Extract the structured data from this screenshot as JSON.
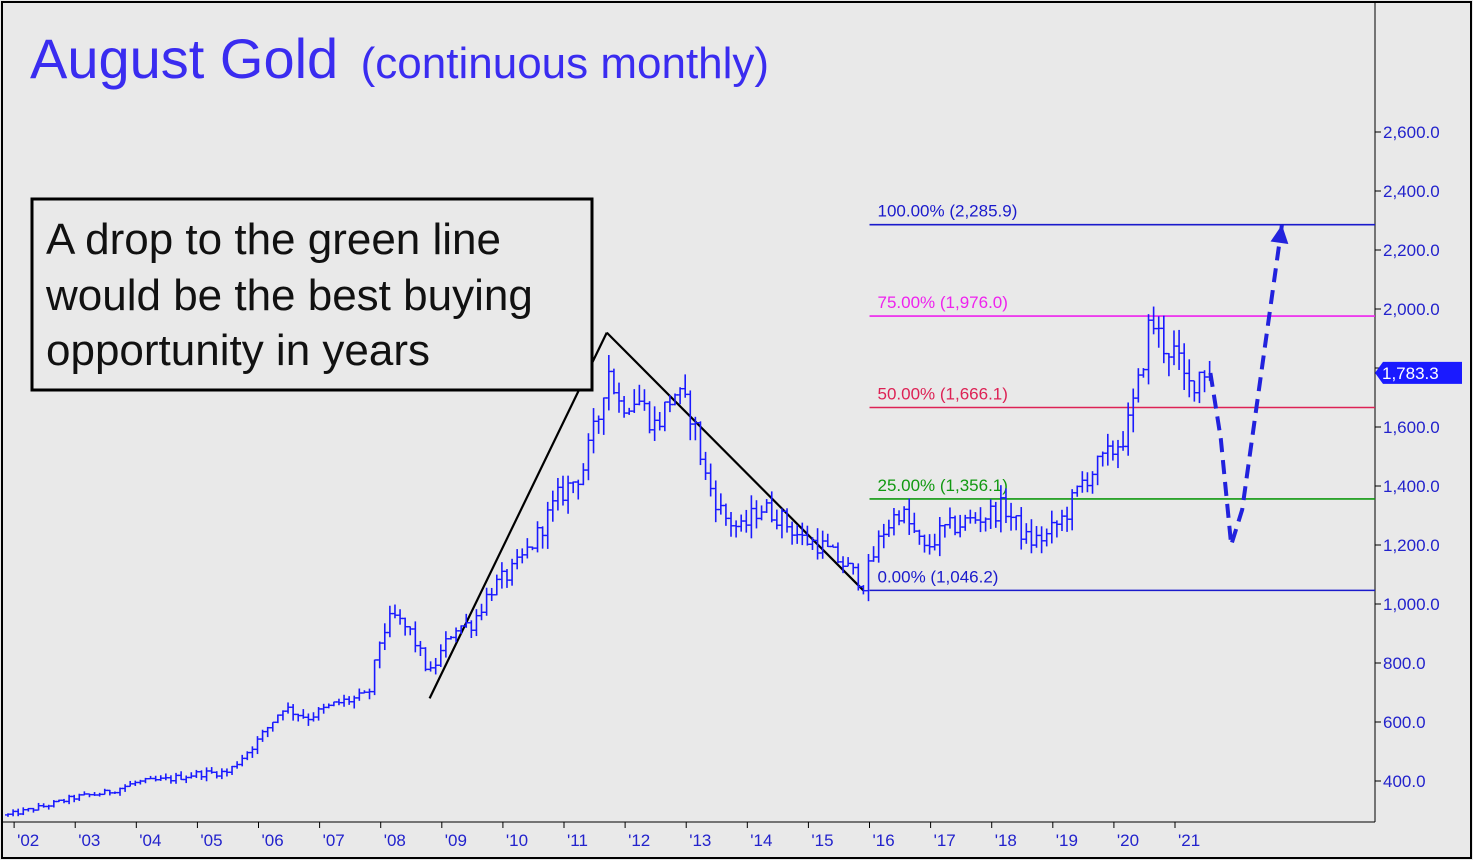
{
  "title": {
    "main": "August Gold",
    "sub": "(continuous monthly)"
  },
  "annotation": {
    "lines": [
      "A drop to the green line",
      "would be the best buying",
      "opportunity in years"
    ]
  },
  "last_price_tag": "1,783.3",
  "colors": {
    "background": "#e9e9e9",
    "bars": "#1a1aff",
    "title": "#3a2cf0",
    "fib_100": "#1a1acc",
    "fib_75": "#ee22ee",
    "fib_50": "#dd2255",
    "fib_25": "#119911",
    "fib_0": "#1a1acc",
    "projection": "#2222dd",
    "trend": "#000000"
  },
  "chart_data": {
    "type": "ohlc",
    "frequency": "monthly",
    "x_tick_labels": [
      "'02",
      "'03",
      "'04",
      "'05",
      "'06",
      "'07",
      "'08",
      "'09",
      "'10",
      "'11",
      "'12",
      "'13",
      "'14",
      "'15",
      "'16",
      "'17",
      "'18",
      "'19",
      "'20",
      "'21"
    ],
    "y_tick_labels": [
      "400.0",
      "600.0",
      "800.0",
      "1,000.0",
      "1,200.0",
      "1,400.0",
      "1,600.0",
      "1,800.0",
      "2,000.0",
      "2,200.0",
      "2,400.0",
      "2,600.0"
    ],
    "y_ticks": [
      400,
      600,
      800,
      1000,
      1200,
      1400,
      1600,
      1800,
      2000,
      2200,
      2400,
      2600
    ],
    "ylim": [
      240,
      2860
    ],
    "xlim": [
      2001.9,
      2023.2
    ],
    "last_price": 1783.3,
    "price_path": [
      [
        2001.9,
        285
      ],
      [
        2002.5,
        315
      ],
      [
        2003.0,
        345
      ],
      [
        2003.5,
        360
      ],
      [
        2004.0,
        395
      ],
      [
        2004.5,
        405
      ],
      [
        2005.0,
        425
      ],
      [
        2005.5,
        430
      ],
      [
        2006.0,
        540
      ],
      [
        2006.4,
        650
      ],
      [
        2006.8,
        615
      ],
      [
        2007.3,
        665
      ],
      [
        2007.8,
        690
      ],
      [
        2008.0,
        890
      ],
      [
        2008.2,
        960
      ],
      [
        2008.5,
        900
      ],
      [
        2008.8,
        760
      ],
      [
        2009.2,
        920
      ],
      [
        2009.5,
        935
      ],
      [
        2009.8,
        1050
      ],
      [
        2010.2,
        1120
      ],
      [
        2010.5,
        1210
      ],
      [
        2010.9,
        1360
      ],
      [
        2011.3,
        1450
      ],
      [
        2011.6,
        1660
      ],
      [
        2011.7,
        1820
      ],
      [
        2011.9,
        1680
      ],
      [
        2012.2,
        1700
      ],
      [
        2012.5,
        1600
      ],
      [
        2012.8,
        1720
      ],
      [
        2013.1,
        1640
      ],
      [
        2013.3,
        1440
      ],
      [
        2013.6,
        1300
      ],
      [
        2013.9,
        1250
      ],
      [
        2014.2,
        1330
      ],
      [
        2014.5,
        1300
      ],
      [
        2014.9,
        1220
      ],
      [
        2015.2,
        1200
      ],
      [
        2015.6,
        1130
      ],
      [
        2015.9,
        1070
      ],
      [
        2016.2,
        1240
      ],
      [
        2016.5,
        1320
      ],
      [
        2016.9,
        1180
      ],
      [
        2017.2,
        1250
      ],
      [
        2017.6,
        1280
      ],
      [
        2017.9,
        1300
      ],
      [
        2018.2,
        1330
      ],
      [
        2018.6,
        1210
      ],
      [
        2018.9,
        1230
      ],
      [
        2019.2,
        1300
      ],
      [
        2019.5,
        1420
      ],
      [
        2019.9,
        1500
      ],
      [
        2020.2,
        1580
      ],
      [
        2020.4,
        1740
      ],
      [
        2020.6,
        1970
      ],
      [
        2020.8,
        1880
      ],
      [
        2021.0,
        1850
      ],
      [
        2021.2,
        1730
      ],
      [
        2021.45,
        1800
      ],
      [
        2021.58,
        1783.3
      ]
    ],
    "fib_levels": [
      {
        "label": "100.00% (2,285.9)",
        "value": 2285.9,
        "color_key": "fib_100"
      },
      {
        "label": "75.00% (1,976.0)",
        "value": 1976.0,
        "color_key": "fib_75"
      },
      {
        "label": "50.00% (1,666.1)",
        "value": 1666.1,
        "color_key": "fib_50"
      },
      {
        "label": "25.00% (1,356.1)",
        "value": 1356.1,
        "color_key": "fib_25"
      },
      {
        "label": "0.00% (1,046.2)",
        "value": 1046.2,
        "color_key": "fib_0"
      }
    ],
    "fib_start_x": 2016.0,
    "trend_lines": [
      {
        "points": [
          [
            2008.8,
            680
          ],
          [
            2011.7,
            1920
          ]
        ]
      },
      {
        "points": [
          [
            2011.7,
            1920
          ],
          [
            2015.9,
            1046
          ]
        ]
      }
    ],
    "projection": {
      "points": [
        [
          2021.58,
          1783
        ],
        [
          2021.75,
          1560
        ],
        [
          2021.92,
          1200
        ],
        [
          2022.1,
          1320
        ],
        [
          2022.75,
          2285
        ]
      ]
    }
  }
}
